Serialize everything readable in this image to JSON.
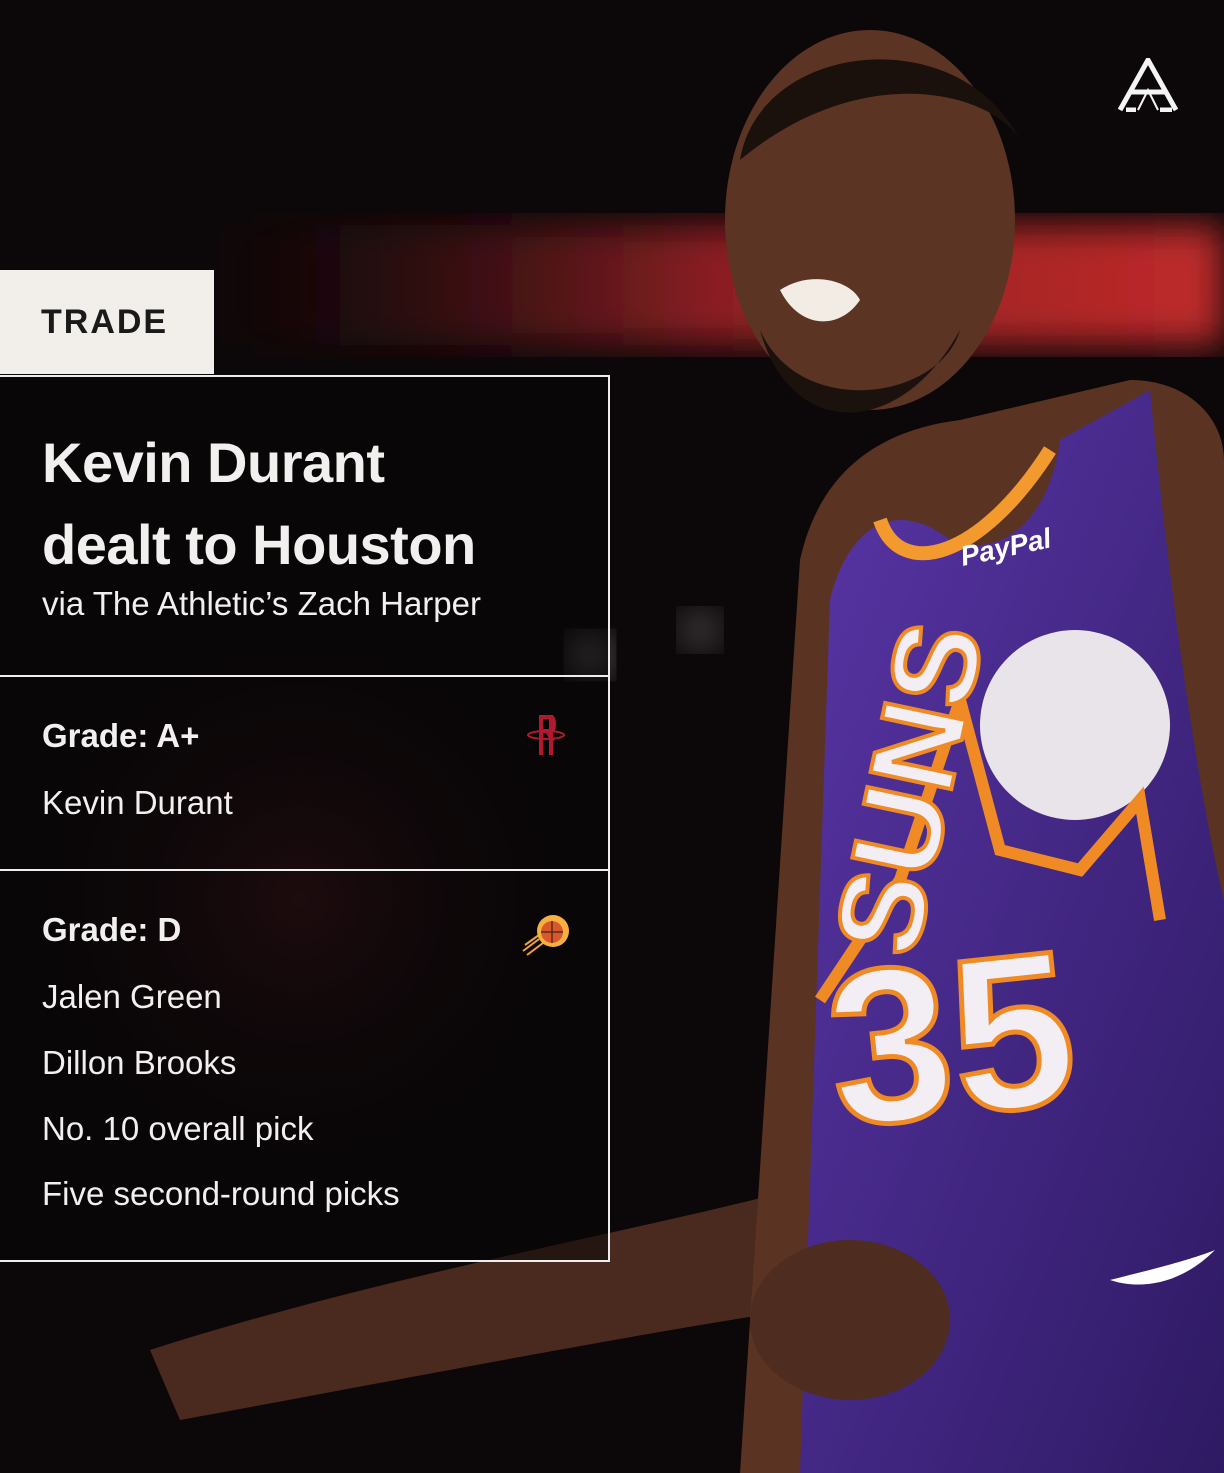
{
  "tag": "TRADE",
  "headline": [
    "Kevin Durant",
    "dealt to Houston"
  ],
  "byline": "via The Athletic’s Zach Harper",
  "sections": [
    {
      "grade": "Grade: A+",
      "team_icon": "houston-rockets-logo-icon",
      "items": [
        "Kevin Durant"
      ]
    },
    {
      "grade": "Grade: D",
      "team_icon": "phoenix-suns-logo-icon",
      "items": [
        "Jalen Green",
        "Dillon Brooks",
        "No. 10 overall pick",
        "Five second-round picks"
      ]
    }
  ],
  "brand": "A",
  "photo": {
    "jersey_number": "35",
    "jersey_text": "SUNS",
    "sponsor": "PayPal"
  },
  "colors": {
    "tag_bg": "#f2eeea",
    "rockets_red": "#c8102e",
    "suns_orange": "#e56020",
    "jersey_purple": "#4b2a8c"
  }
}
